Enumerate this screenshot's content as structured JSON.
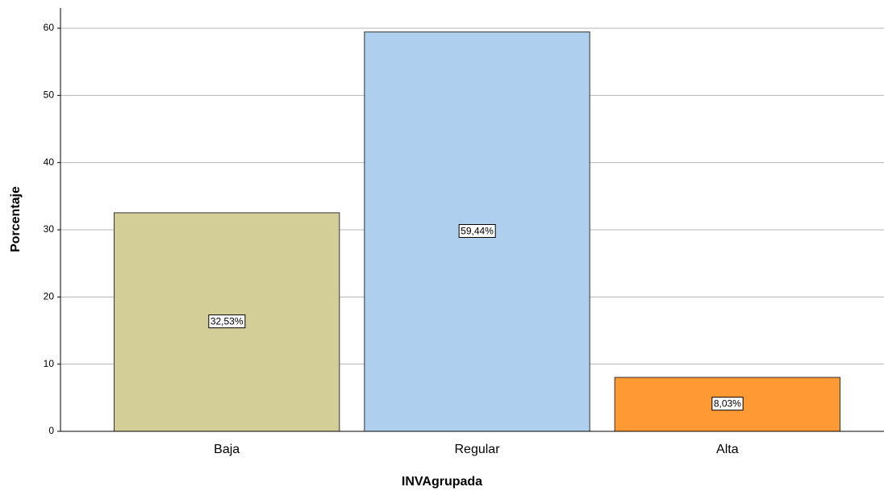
{
  "chart_data": {
    "type": "bar",
    "x_label": "INVAgrupada",
    "y_label": "Porcentaje",
    "categories": [
      "Baja",
      "Regular",
      "Alta"
    ],
    "values": [
      32.53,
      59.44,
      8.03
    ],
    "value_labels": [
      "32,53%",
      "59,44%",
      "8,03%"
    ],
    "colors": [
      "#d3ce97",
      "#aed0ee",
      "#ff9933"
    ],
    "ylim": [
      0,
      63
    ],
    "yticks": [
      0,
      10,
      20,
      30,
      40,
      50,
      60
    ],
    "grid": true
  }
}
